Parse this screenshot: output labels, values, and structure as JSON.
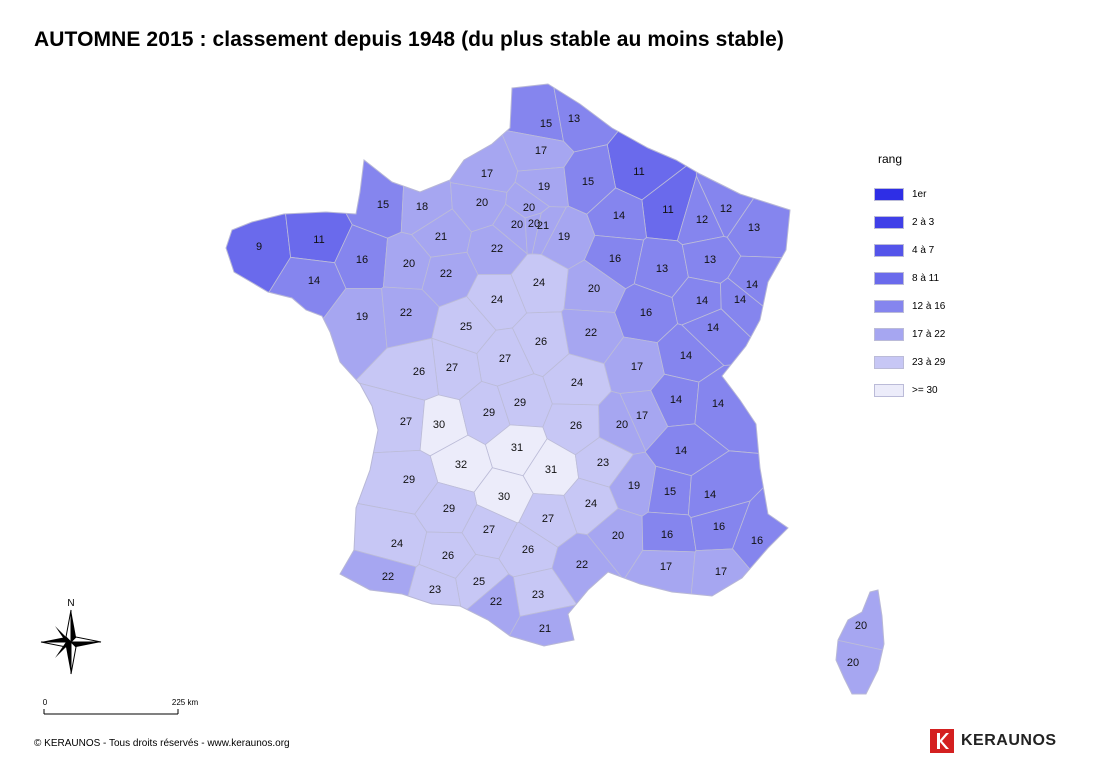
{
  "title": "AUTOMNE 2015 : classement depuis 1948 (du plus stable au moins stable)",
  "legend": {
    "title": "rang",
    "classes": [
      {
        "label": "1er",
        "color": "#2e2ee6"
      },
      {
        "label": "2 à 3",
        "color": "#3f3fe8"
      },
      {
        "label": "4 à 7",
        "color": "#5454ea"
      },
      {
        "label": "8 à 11",
        "color": "#6a6aec"
      },
      {
        "label": "12 à 16",
        "color": "#8585ee"
      },
      {
        "label": "17 à 22",
        "color": "#a6a6f1"
      },
      {
        "label": "23 à 29",
        "color": "#c7c7f5"
      },
      {
        "label": ">= 30",
        "color": "#ececfa"
      }
    ]
  },
  "departments": [
    {
      "rank": 15
    },
    {
      "rank": 13
    },
    {
      "rank": 17
    },
    {
      "rank": 17
    },
    {
      "rank": 11
    },
    {
      "rank": 19
    },
    {
      "rank": 15
    },
    {
      "rank": 15
    },
    {
      "rank": 18
    },
    {
      "rank": 20
    },
    {
      "rank": 20
    },
    {
      "rank": 20
    },
    {
      "rank": 21
    },
    {
      "rank": 20
    },
    {
      "rank": 21
    },
    {
      "rank": 22
    },
    {
      "rank": 19
    },
    {
      "rank": 11
    },
    {
      "rank": 12
    },
    {
      "rank": 12
    },
    {
      "rank": 13
    },
    {
      "rank": 9
    },
    {
      "rank": 11
    },
    {
      "rank": 16
    },
    {
      "rank": 14
    },
    {
      "rank": 20
    },
    {
      "rank": 22
    },
    {
      "rank": 14
    },
    {
      "rank": 16
    },
    {
      "rank": 13
    },
    {
      "rank": 13
    },
    {
      "rank": 24
    },
    {
      "rank": 24
    },
    {
      "rank": 20
    },
    {
      "rank": 14
    },
    {
      "rank": 14
    },
    {
      "rank": 14
    },
    {
      "rank": 19
    },
    {
      "rank": 22
    },
    {
      "rank": 25
    },
    {
      "rank": 16
    },
    {
      "rank": 22
    },
    {
      "rank": 14
    },
    {
      "rank": 26
    },
    {
      "rank": 27
    },
    {
      "rank": 27
    },
    {
      "rank": 26
    },
    {
      "rank": 17
    },
    {
      "rank": 14
    },
    {
      "rank": 24
    },
    {
      "rank": 14
    },
    {
      "rank": 17
    },
    {
      "rank": 27
    },
    {
      "rank": 30
    },
    {
      "rank": 29
    },
    {
      "rank": 29
    },
    {
      "rank": 26
    },
    {
      "rank": 20
    },
    {
      "rank": 14
    },
    {
      "rank": 31
    },
    {
      "rank": 32
    },
    {
      "rank": 31
    },
    {
      "rank": 23
    },
    {
      "rank": 14
    },
    {
      "rank": 29
    },
    {
      "rank": 30
    },
    {
      "rank": 19
    },
    {
      "rank": 15
    },
    {
      "rank": 14
    },
    {
      "rank": 29
    },
    {
      "rank": 24
    },
    {
      "rank": 27
    },
    {
      "rank": 27
    },
    {
      "rank": 24
    },
    {
      "rank": 26
    },
    {
      "rank": 20
    },
    {
      "rank": 16
    },
    {
      "rank": 16
    },
    {
      "rank": 16
    },
    {
      "rank": 26
    },
    {
      "rank": 22
    },
    {
      "rank": 17
    },
    {
      "rank": 17
    },
    {
      "rank": 22
    },
    {
      "rank": 25
    },
    {
      "rank": 23
    },
    {
      "rank": 23
    },
    {
      "rank": 22
    },
    {
      "rank": 21
    },
    {
      "rank": 20
    },
    {
      "rank": 20
    }
  ],
  "north_label": "N",
  "scale": {
    "start": "0",
    "end": "225 km"
  },
  "copyright": "©  KERAUNOS - Tous droits réservés - www.keraunos.org",
  "brand": {
    "name": "KERAUNOS",
    "color": "#d42020"
  }
}
